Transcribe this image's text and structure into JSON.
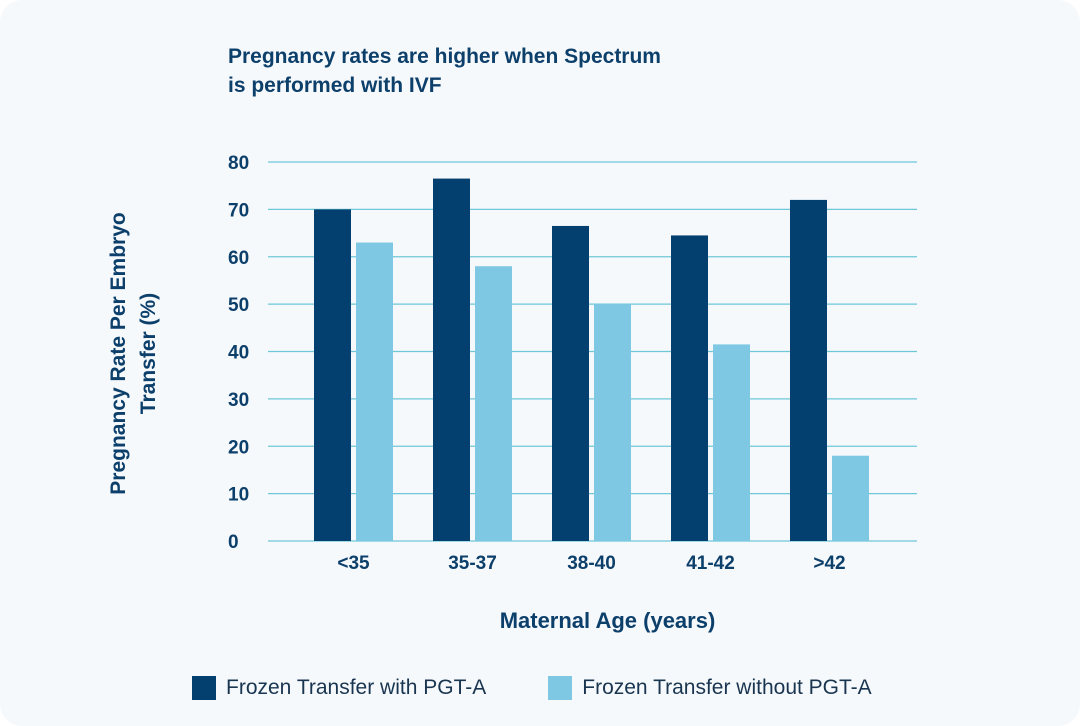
{
  "title_lines": [
    "Pregnancy rates are higher when Spectrum",
    "is performed with IVF"
  ],
  "colors": {
    "background": "#f5f9fc",
    "text": "#0d3f6b",
    "grid": "#6fc8d8",
    "series_with": "#04406f",
    "series_without": "#7ec8e3"
  },
  "chart_data": {
    "type": "bar",
    "title": "Pregnancy rates are higher when Spectrum is performed with IVF",
    "xlabel": "Maternal Age (years)",
    "ylabel_lines": [
      "Pregnancy Rate Per Embryo",
      "Transfer (%)"
    ],
    "categories": [
      "<35",
      "35-37",
      "38-40",
      "41-42",
      ">42"
    ],
    "series": [
      {
        "name": "Frozen Transfer with PGT-A",
        "values": [
          70,
          76.5,
          66.5,
          64.5,
          72
        ]
      },
      {
        "name": "Frozen Transfer without PGT-A",
        "values": [
          63,
          58,
          50,
          41.5,
          18
        ]
      }
    ],
    "ylim": [
      0,
      80
    ],
    "yticks": [
      0,
      10,
      20,
      30,
      40,
      50,
      60,
      70,
      80
    ],
    "grid": true,
    "legend_position": "bottom"
  }
}
